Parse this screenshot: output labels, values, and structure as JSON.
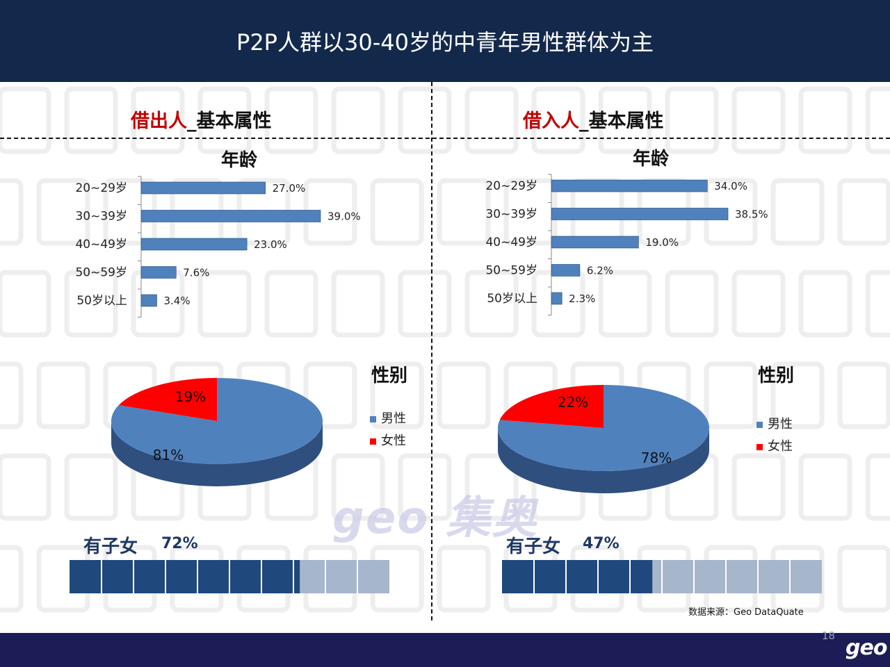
{
  "header": {
    "title": "P2P人群以30-40岁的中青年男性群体为主"
  },
  "lenders": {
    "title_red": "借出人",
    "title_rest": "_基本属性",
    "age_title": "年龄",
    "gender_title": "性别",
    "kids_label": "有子女",
    "kids_pct_label": "72%",
    "kids_fraction": 0.72
  },
  "borrowers": {
    "title_red": "借入人",
    "title_rest": "_基本属性",
    "age_title": "年龄",
    "gender_title": "性别",
    "kids_label": "有子女",
    "kids_pct_label": "47%",
    "kids_fraction": 0.47
  },
  "watermark": "geo 集奥",
  "source": "数据来源：Geo  DataQuate",
  "footer": {
    "page": "18",
    "logo": "geo"
  },
  "colors": {
    "blue": "#4f81bd",
    "red": "#ff0000",
    "navy": "#1f497d",
    "light": "#a6b6cc"
  },
  "chart_data": [
    {
      "type": "bar",
      "orientation": "horizontal",
      "title": "年龄",
      "categories": [
        "20~29岁",
        "30~39岁",
        "40~49岁",
        "50~59岁",
        "50岁以上"
      ],
      "values": [
        27.0,
        39.0,
        23.0,
        7.6,
        3.4
      ],
      "value_labels": [
        "27.0%",
        "39.0%",
        "23.0%",
        "7.6%",
        "3.4%"
      ]
    },
    {
      "type": "bar",
      "orientation": "horizontal",
      "title": "年龄",
      "categories": [
        "20~29岁",
        "30~39岁",
        "40~49岁",
        "50~59岁",
        "50岁以上"
      ],
      "values": [
        34.0,
        38.5,
        19.0,
        6.2,
        2.3
      ],
      "value_labels": [
        "34.0%",
        "38.5%",
        "19.0%",
        "6.2%",
        "2.3%"
      ]
    },
    {
      "type": "pie",
      "title": "性别",
      "labels": [
        "男性",
        "女性"
      ],
      "values": [
        81,
        19
      ],
      "value_labels": [
        "81%",
        "19%"
      ],
      "legend": "right"
    },
    {
      "type": "pie",
      "title": "性别",
      "labels": [
        "男性",
        "女性"
      ],
      "values": [
        78,
        22
      ],
      "value_labels": [
        "78%",
        "22%"
      ],
      "legend": "right"
    }
  ]
}
